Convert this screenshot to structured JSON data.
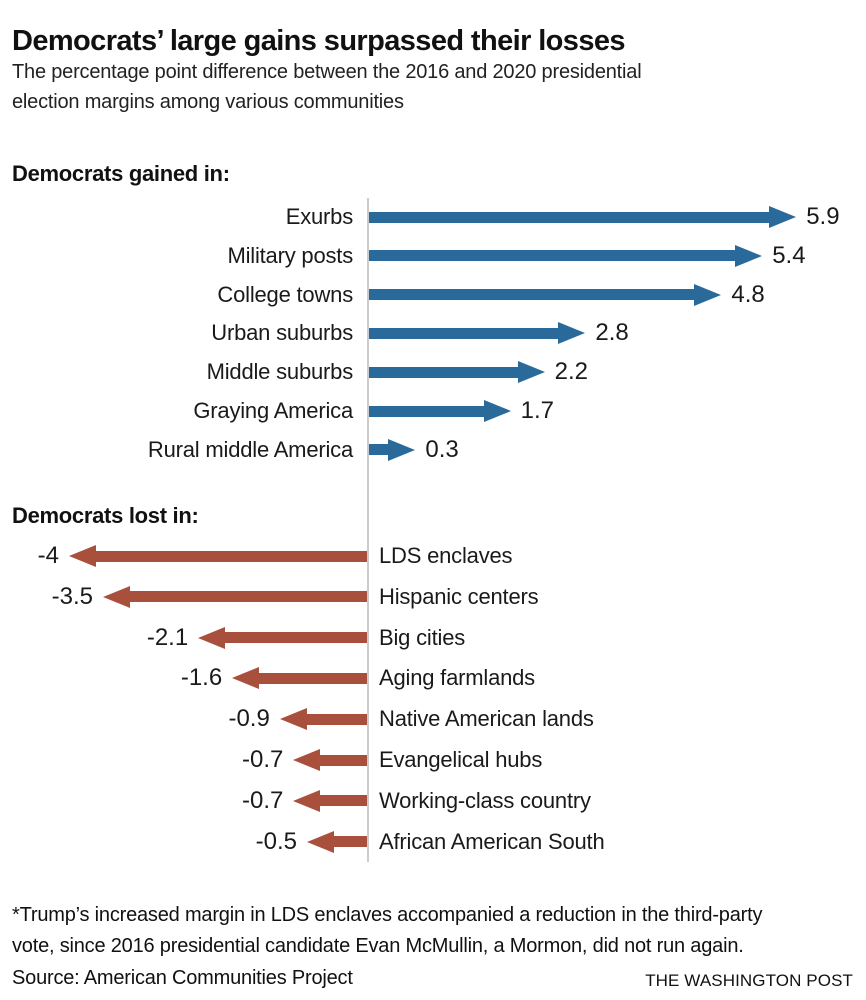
{
  "title": "Democrats’ large gains surpassed their losses",
  "subtitle_lines": [
    "The percentage point difference between the 2016 and 2020 presidential",
    "election margins among various communities"
  ],
  "chart_data": {
    "type": "bar",
    "subtype": "diverging-horizontal-arrows",
    "title": "Democrats’ large gains surpassed their losses",
    "unit": "percentage points (2020 margin minus 2016 margin)",
    "zero_baseline": true,
    "legend": "none",
    "sections": [
      {
        "heading": "Democrats gained in:",
        "direction": "right",
        "color": "#2a6a9a",
        "rows": [
          {
            "label": "Exurbs",
            "value": 5.9,
            "display": "5.9"
          },
          {
            "label": "Military posts",
            "value": 5.4,
            "display": "5.4"
          },
          {
            "label": "College towns",
            "value": 4.8,
            "display": "4.8"
          },
          {
            "label": "Urban suburbs",
            "value": 2.8,
            "display": "2.8"
          },
          {
            "label": "Middle suburbs",
            "value": 2.2,
            "display": "2.2"
          },
          {
            "label": "Graying America",
            "value": 1.7,
            "display": "1.7"
          },
          {
            "label": "Rural middle America",
            "value": 0.3,
            "display": "0.3"
          }
        ]
      },
      {
        "heading": "Democrats lost in:",
        "direction": "left",
        "color": "#a8503c",
        "rows": [
          {
            "label": "LDS enclaves",
            "value": -4,
            "display": "-4"
          },
          {
            "label": "Hispanic centers",
            "value": -3.5,
            "display": "-3.5"
          },
          {
            "label": "Big cities",
            "value": -2.1,
            "display": "-2.1"
          },
          {
            "label": "Aging farmlands",
            "value": -1.6,
            "display": "-1.6"
          },
          {
            "label": "Native American lands",
            "value": -0.9,
            "display": "-0.9"
          },
          {
            "label": "Evangelical hubs",
            "value": -0.7,
            "display": "-0.7"
          },
          {
            "label": "Working-class country",
            "value": -0.7,
            "display": "-0.7"
          },
          {
            "label": "African American South",
            "value": -0.5,
            "display": "-0.5"
          }
        ]
      }
    ]
  },
  "footnote_lines": [
    "*Trump’s increased margin in LDS enclaves accompanied a reduction in the third-party",
    "vote, since 2016 presidential candidate Evan McMullin, a Mormon, did not run again."
  ],
  "source": "Source: American Communities Project",
  "credit": "THE WASHINGTON POST",
  "colors": {
    "gain_arrow": "#2a6a9a",
    "loss_arrow": "#a8503c",
    "axis_line": "#cccccc",
    "text": "#1a1a1a"
  }
}
